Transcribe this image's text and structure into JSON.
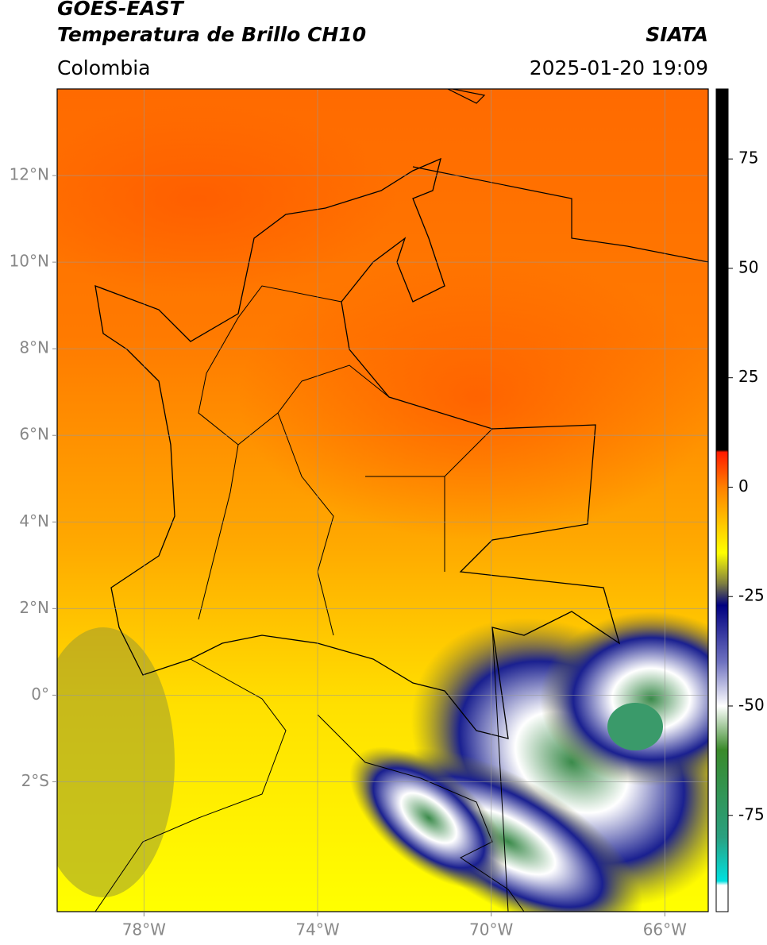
{
  "header": {
    "title": "GOES-EAST",
    "subtitle": "Temperatura de Brillo CH10",
    "source": "SIATA",
    "region": "Colombia",
    "datetime": "2025-01-20 19:09"
  },
  "map": {
    "xlim": [
      -80,
      -65
    ],
    "ylim": [
      -5,
      14
    ],
    "grid": true,
    "xticks": [
      {
        "value": -78,
        "label": "78°W"
      },
      {
        "value": -74,
        "label": "74°W"
      },
      {
        "value": -70,
        "label": "70°W"
      },
      {
        "value": -66,
        "label": "66°W"
      }
    ],
    "yticks": [
      {
        "value": 12,
        "label": "12°N"
      },
      {
        "value": 10,
        "label": "10°N"
      },
      {
        "value": 8,
        "label": "8°N"
      },
      {
        "value": 6,
        "label": "6°N"
      },
      {
        "value": 4,
        "label": "4°N"
      },
      {
        "value": 2,
        "label": "2°N"
      },
      {
        "value": 0,
        "label": "0°"
      },
      {
        "value": -2,
        "label": "2°S"
      }
    ]
  },
  "colorbar": {
    "lim": [
      -97,
      91
    ],
    "ticks": [
      75,
      50,
      25,
      0,
      -25,
      -50,
      -75
    ],
    "colormap": [
      {
        "value": 91,
        "color": "#000000"
      },
      {
        "value": 8.5,
        "color": "#000000"
      },
      {
        "value": 8,
        "color": "#ff1a00"
      },
      {
        "value": 0,
        "color": "#ff8000"
      },
      {
        "value": -15,
        "color": "#ffff00"
      },
      {
        "value": -22,
        "color": "#7f7f40"
      },
      {
        "value": -27,
        "color": "#000080"
      },
      {
        "value": -40,
        "color": "#6f72c0"
      },
      {
        "value": -50,
        "color": "#ffffff"
      },
      {
        "value": -60,
        "color": "#3a8a2a"
      },
      {
        "value": -80,
        "color": "#2aa080"
      },
      {
        "value": -90,
        "color": "#00e0e0"
      },
      {
        "value": -91,
        "color": "#ffffff"
      },
      {
        "value": -97,
        "color": "#ffffff"
      }
    ]
  }
}
